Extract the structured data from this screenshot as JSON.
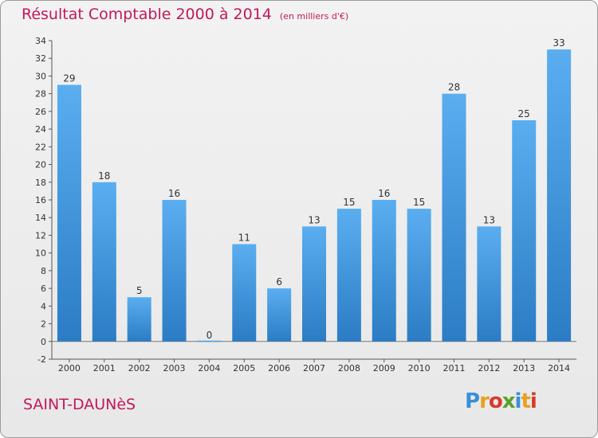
{
  "chart_data": {
    "type": "bar",
    "title": "Résultat Comptable 2000 à 2014",
    "subtitle": "(en milliers d'€)",
    "categories": [
      "2000",
      "2001",
      "2002",
      "2003",
      "2004",
      "2005",
      "2006",
      "2007",
      "2008",
      "2009",
      "2010",
      "2011",
      "2012",
      "2013",
      "2014"
    ],
    "values": [
      29,
      18,
      5,
      16,
      0,
      11,
      6,
      13,
      15,
      16,
      15,
      28,
      13,
      25,
      33
    ],
    "yticks": [
      -2,
      0,
      2,
      4,
      6,
      8,
      10,
      12,
      14,
      16,
      18,
      20,
      22,
      24,
      26,
      28,
      30,
      32,
      34
    ],
    "ylim": [
      -2,
      34
    ],
    "grid": false,
    "bar_color": "#4a9ee0"
  },
  "place_name": "SAINT-DAUNèS",
  "brand": "Proxiti"
}
